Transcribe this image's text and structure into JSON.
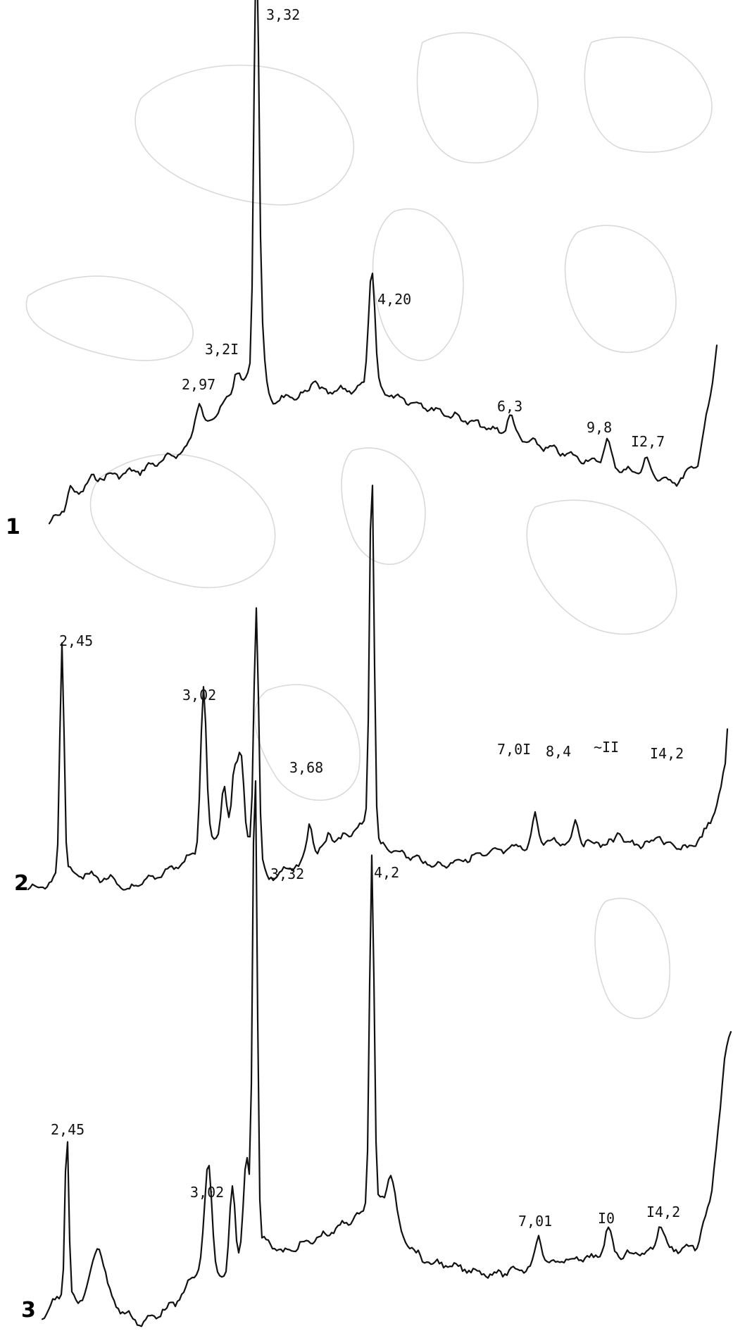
{
  "chart_data": {
    "type": "line",
    "title": "",
    "xlabel": "",
    "ylabel": "",
    "grid": false,
    "x_direction": "decreasing d-spacing to the left (small d left, large d right)",
    "series": [
      {
        "curve_number": "1",
        "peaks": [
          {
            "label": "2,97",
            "d": 2.97,
            "relative_intensity": 0.14
          },
          {
            "label": "3,2I",
            "d": 3.21,
            "relative_intensity": 0.25
          },
          {
            "label": "3,32",
            "d": 3.32,
            "relative_intensity": 1.0
          },
          {
            "label": "4,20",
            "d": 4.2,
            "relative_intensity": 0.35
          },
          {
            "label": "6,3",
            "d": 6.3,
            "relative_intensity": 0.08
          },
          {
            "label": "9,8",
            "d": 9.8,
            "relative_intensity": 0.07
          },
          {
            "label": "I2,7",
            "d": 12.7,
            "relative_intensity": 0.05
          }
        ]
      },
      {
        "curve_number": "2",
        "peaks": [
          {
            "label": "2,45",
            "d": 2.45,
            "relative_intensity": 0.4
          },
          {
            "label": "3,02",
            "d": 3.02,
            "relative_intensity": 0.3
          },
          {
            "label": "3,32",
            "d": 3.32,
            "relative_intensity": 1.0
          },
          {
            "label": "3,68",
            "d": 3.68,
            "relative_intensity": 0.06
          },
          {
            "label": "4,2",
            "d": 4.2,
            "relative_intensity": 0.65
          },
          {
            "label": "7,0I",
            "d": 7.01,
            "relative_intensity": 0.05
          },
          {
            "label": "8,4",
            "d": 8.4,
            "relative_intensity": 0.05
          },
          {
            "label": "~II",
            "d": 11,
            "relative_intensity": 0.04
          },
          {
            "label": "I4,2",
            "d": 14.2,
            "relative_intensity": 0.04
          }
        ]
      },
      {
        "curve_number": "3",
        "peaks": [
          {
            "label": "2,45",
            "d": 2.45,
            "relative_intensity": 0.3
          },
          {
            "label": "3,02",
            "d": 3.02,
            "relative_intensity": 0.18
          },
          {
            "label": "3,32",
            "d": 3.32,
            "relative_intensity": 1.0
          },
          {
            "label": "4,2",
            "d": 4.2,
            "relative_intensity": 0.95
          },
          {
            "label": "7,01",
            "d": 7.01,
            "relative_intensity": 0.06
          },
          {
            "label": "I0",
            "d": 10,
            "relative_intensity": 0.06
          },
          {
            "label": "I4,2",
            "d": 14.2,
            "relative_intensity": 0.08
          }
        ]
      }
    ]
  }
}
